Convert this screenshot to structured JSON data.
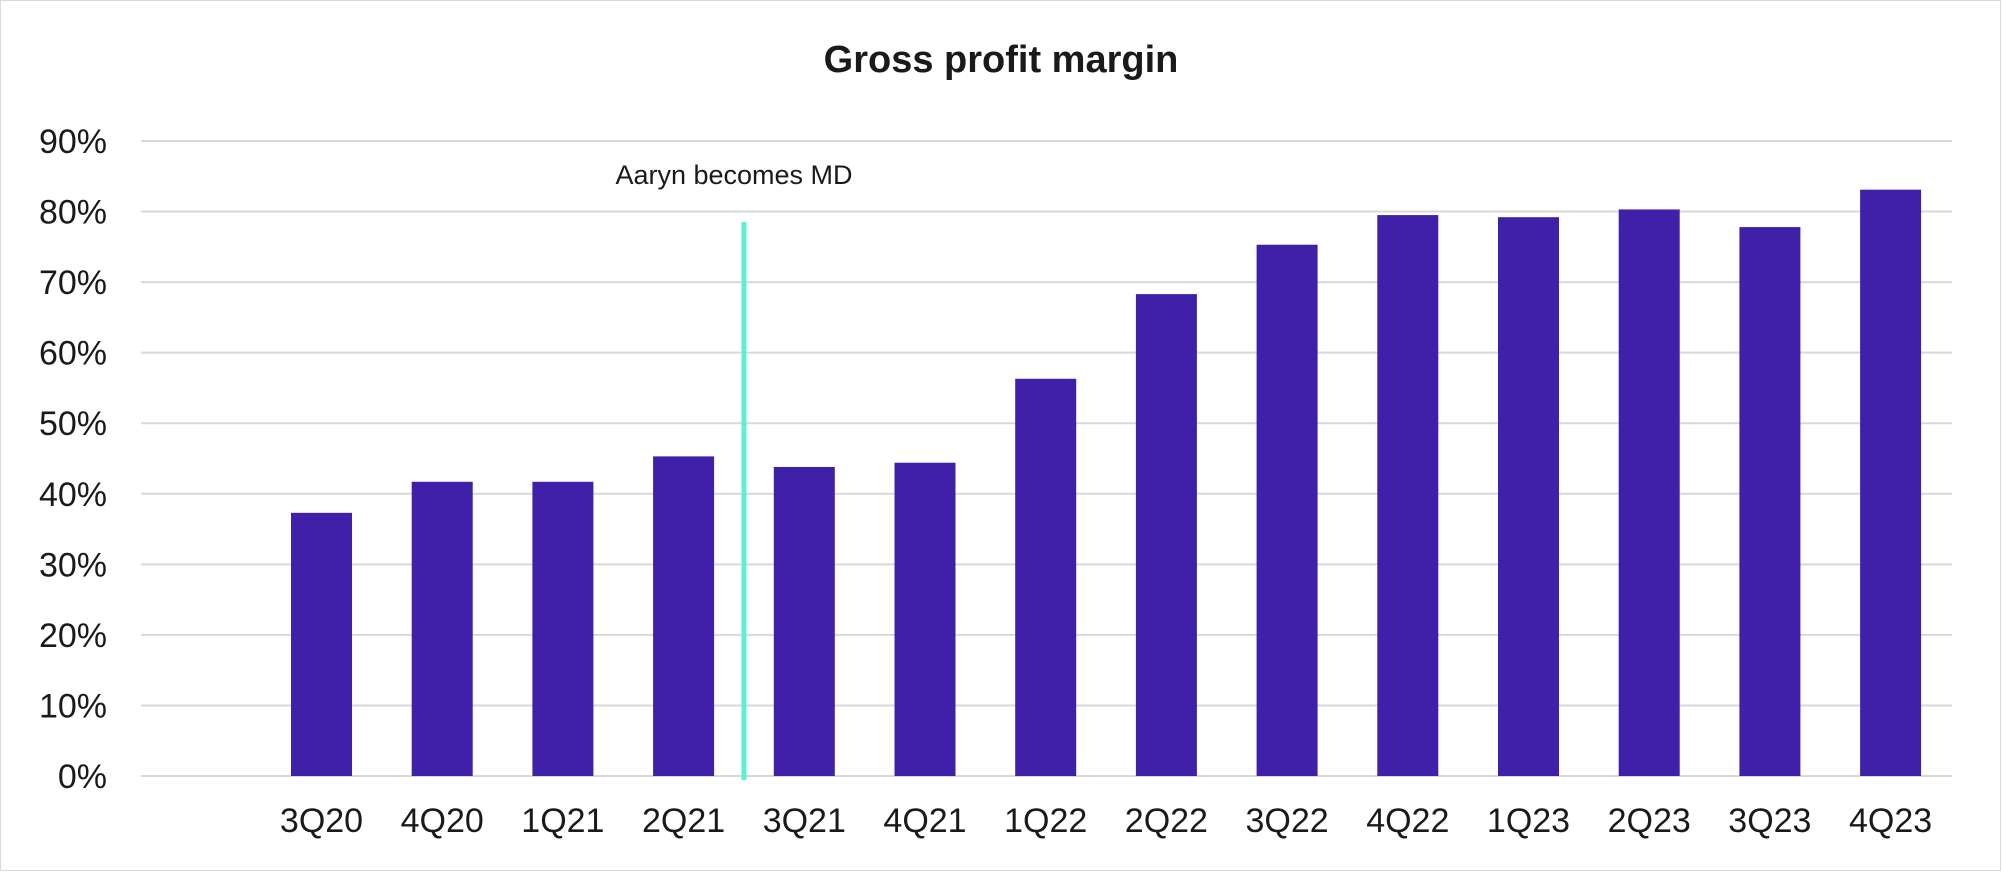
{
  "chart_data": {
    "type": "bar",
    "title": "Gross profit margin",
    "xlabel": "",
    "ylabel": "",
    "categories": [
      "3Q20",
      "4Q20",
      "1Q21",
      "2Q21",
      "3Q21",
      "4Q21",
      "1Q22",
      "2Q22",
      "3Q22",
      "4Q22",
      "1Q23",
      "2Q23",
      "3Q23",
      "4Q23"
    ],
    "values": [
      37.3,
      41.7,
      41.7,
      45.3,
      43.8,
      44.4,
      56.3,
      68.3,
      75.3,
      79.5,
      79.2,
      80.3,
      77.8,
      83.1
    ],
    "value_format": "percent",
    "ylim": [
      0,
      90
    ],
    "yticks": [
      0,
      10,
      20,
      30,
      40,
      50,
      60,
      70,
      80,
      90
    ],
    "ytick_labels": [
      "0%",
      "10%",
      "20%",
      "30%",
      "40%",
      "50%",
      "60%",
      "70%",
      "80%",
      "90%"
    ],
    "grid": true,
    "legend": "none",
    "colors": {
      "bar": "#4020a8",
      "marker_line": "#5ef0d2",
      "grid": "#d9d9d9",
      "text": "#1a1a1a"
    },
    "annotations": [
      {
        "text": "Aaryn becomes MD",
        "between": [
          "2Q21",
          "3Q21"
        ],
        "style": "vertical-line"
      }
    ]
  }
}
